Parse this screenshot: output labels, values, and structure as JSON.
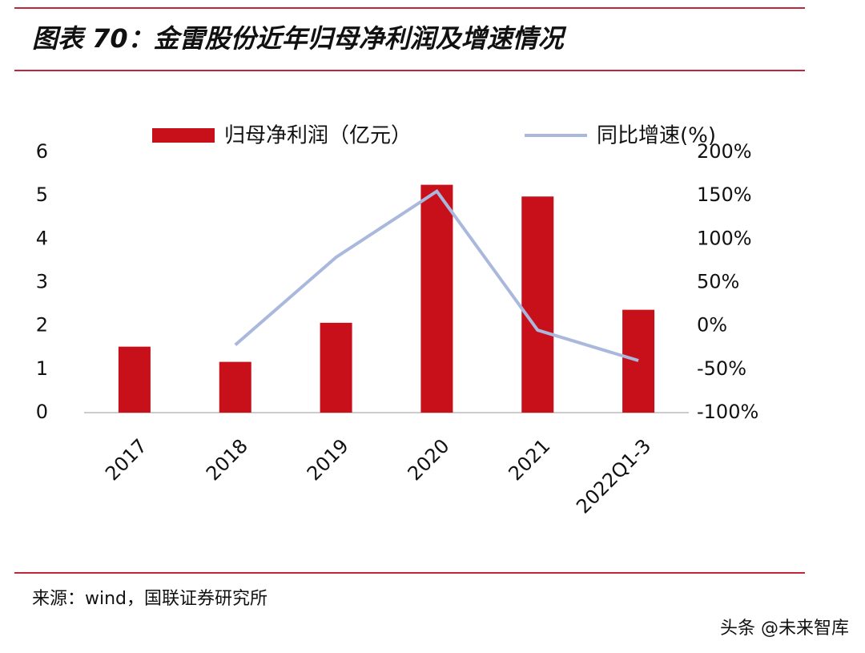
{
  "chart_data": {
    "type": "bar-line",
    "title": "图表 70：金雷股份近年归母净利润及增速情况",
    "categories": [
      "2017",
      "2018",
      "2019",
      "2020",
      "2021",
      "2022Q1-3"
    ],
    "series": [
      {
        "name": "归母净利润（亿元）",
        "type": "bar",
        "color": "#c8101a",
        "values": [
          1.52,
          1.17,
          2.07,
          5.25,
          4.98,
          2.37
        ]
      },
      {
        "name": "同比增速(%)",
        "type": "line",
        "axis": "y2",
        "color": "#a9b8dc",
        "values": [
          null,
          -22,
          79,
          155,
          -5,
          -40
        ]
      }
    ],
    "ylim": [
      0,
      6
    ],
    "yticks": [
      0,
      1,
      2,
      3,
      4,
      5,
      6
    ],
    "y2lim": [
      -100,
      200
    ],
    "y2ticks": [
      {
        "value": -100,
        "label": "-100%"
      },
      {
        "value": -50,
        "label": "-50%"
      },
      {
        "value": 0,
        "label": "0%"
      },
      {
        "value": 50,
        "label": "50%"
      },
      {
        "value": 100,
        "label": "100%"
      },
      {
        "value": 150,
        "label": "150%"
      },
      {
        "value": 200,
        "label": "200%"
      }
    ],
    "grid": false,
    "legend": "top",
    "source": "来源：wind，国联证券研究所",
    "watermark": "头条 @未来智库"
  }
}
